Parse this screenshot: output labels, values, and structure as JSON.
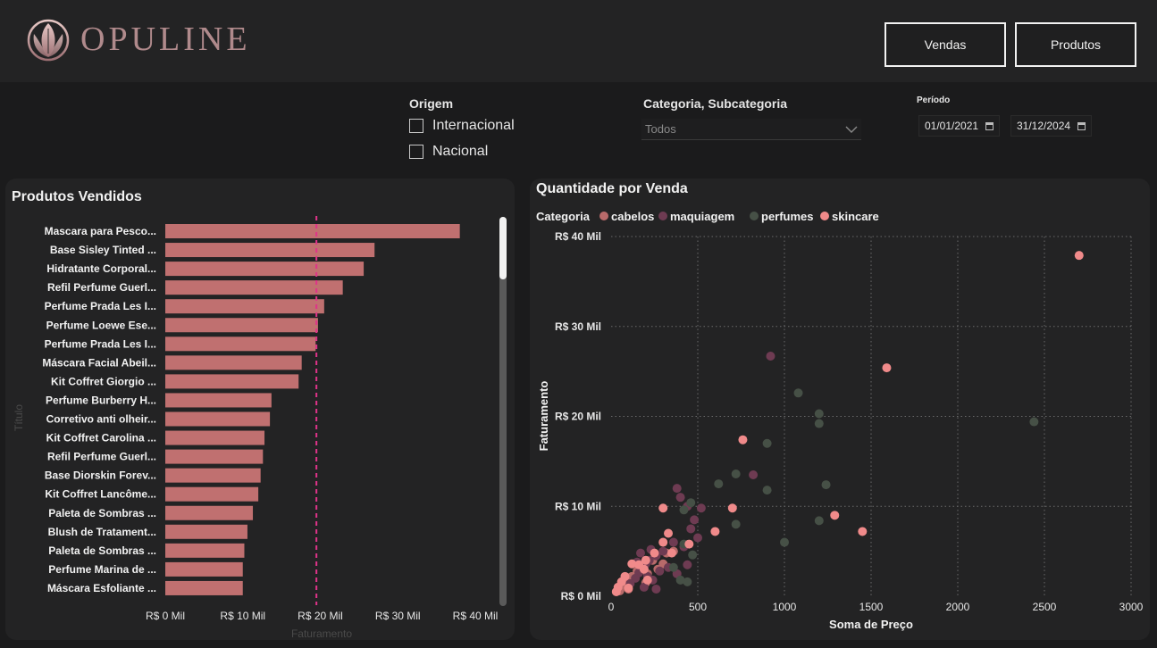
{
  "brand": {
    "name": "OPULINE"
  },
  "nav": {
    "vendas": "Vendas",
    "produtos": "Produtos"
  },
  "filters": {
    "origem": {
      "title": "Origem",
      "options": [
        "Internacional",
        "Nacional"
      ]
    },
    "categoria": {
      "title": "Categoria, Subcategoria",
      "value": "Todos"
    },
    "periodo": {
      "title": "Período",
      "start": "01/01/2021",
      "end": "31/12/2024"
    }
  },
  "left_chart": {
    "title": "Produtos Vendidos",
    "y_axis_title": "Título",
    "x_axis_title": "Faturamento",
    "average_line": 19.5,
    "color": "#c07070",
    "avg_color": "#e0338a"
  },
  "right_chart": {
    "title": "Quantidade por Venda",
    "legend_title": "Categoria",
    "x_axis_title": "Soma de Preço",
    "y_axis_title": "Faturamento"
  },
  "chart_data": [
    {
      "type": "bar",
      "orientation": "horizontal",
      "title": "Produtos Vendidos",
      "xlabel": "Faturamento",
      "ylabel": "Título",
      "xlim": [
        0,
        42
      ],
      "x_ticks": [
        "R$ 0 Mil",
        "R$ 10 Mil",
        "R$ 20 Mil",
        "R$ 30 Mil",
        "R$ 40 Mil"
      ],
      "x_tick_values": [
        0,
        10,
        20,
        30,
        40
      ],
      "categories": [
        "Mascara para Pesco...",
        "Base Sisley Tinted ...",
        "Hidratante Corporal...",
        "Refil Perfume Guerl...",
        "Perfume Prada Les I...",
        "Perfume Loewe Ese...",
        "Perfume Prada Les I...",
        "Máscara Facial Abeil...",
        "Kit Coffret Giorgio ...",
        "Perfume Burberry H...",
        "Corretivo anti olheir...",
        "Kit Coffret Carolina ...",
        "Refil Perfume Guerl...",
        "Base Diorskin Forev...",
        "Kit Coffret Lancôme...",
        "Paleta de Sombras ...",
        "Blush de Tratament...",
        "Paleta de Sombras ...",
        "Perfume Marina de ...",
        "Máscara Esfoliante ..."
      ],
      "values": [
        38.0,
        27.0,
        25.6,
        22.9,
        20.5,
        19.7,
        19.4,
        17.6,
        17.2,
        13.7,
        13.5,
        12.8,
        12.6,
        12.3,
        12.0,
        11.3,
        10.6,
        10.2,
        10.0,
        10.0
      ]
    },
    {
      "type": "scatter",
      "title": "Quantidade por Venda",
      "xlabel": "Soma de Preço",
      "ylabel": "Faturamento",
      "xlim": [
        0,
        3000
      ],
      "ylim": [
        0,
        40
      ],
      "x_ticks": [
        "0",
        "500",
        "1000",
        "1500",
        "2000",
        "2500",
        "3000"
      ],
      "x_tick_values": [
        0,
        500,
        1000,
        1500,
        2000,
        2500,
        3000
      ],
      "y_ticks": [
        "R$ 0 Mil",
        "R$ 10 Mil",
        "R$ 20 Mil",
        "R$ 30 Mil",
        "R$ 40 Mil"
      ],
      "y_tick_values": [
        0,
        10,
        20,
        30,
        40
      ],
      "legend_title": "Categoria",
      "legend_position": "top-left",
      "grid": true,
      "series": [
        {
          "name": "cabelos",
          "color": "#b86a6a",
          "points": [
            [
              60,
              1.2
            ],
            [
              90,
              1.8
            ],
            [
              120,
              2.2
            ],
            [
              150,
              2.8
            ],
            [
              180,
              3.5
            ],
            [
              210,
              2.5
            ],
            [
              240,
              4.0
            ],
            [
              270,
              3.0
            ],
            [
              300,
              3.6
            ],
            [
              320,
              4.8
            ],
            [
              360,
              5.0
            ],
            [
              200,
              1.5
            ],
            [
              100,
              0.8
            ],
            [
              50,
              0.6
            ]
          ]
        },
        {
          "name": "maquiagem",
          "color": "#6e3b52",
          "points": [
            [
              920,
              26.7
            ],
            [
              820,
              13.5
            ],
            [
              380,
              12.0
            ],
            [
              400,
              11.0
            ],
            [
              440,
              10.0
            ],
            [
              480,
              8.5
            ],
            [
              520,
              9.8
            ],
            [
              460,
              7.5
            ],
            [
              500,
              6.5
            ],
            [
              420,
              5.5
            ],
            [
              360,
              6.0
            ],
            [
              300,
              5.0
            ],
            [
              260,
              4.5
            ],
            [
              220,
              4.0
            ],
            [
              200,
              3.6
            ],
            [
              180,
              3.0
            ],
            [
              160,
              2.6
            ],
            [
              140,
              2.0
            ],
            [
              240,
              1.8
            ],
            [
              280,
              2.8
            ],
            [
              330,
              3.2
            ],
            [
              380,
              2.5
            ],
            [
              440,
              3.5
            ],
            [
              170,
              4.8
            ],
            [
              230,
              5.2
            ],
            [
              110,
              1.4
            ],
            [
              190,
              1.0
            ],
            [
              260,
              0.8
            ],
            [
              150,
              3.8
            ],
            [
              210,
              2.2
            ]
          ]
        },
        {
          "name": "perfumes",
          "color": "#465046",
          "points": [
            [
              1080,
              22.6
            ],
            [
              1200,
              20.3
            ],
            [
              1200,
              19.2
            ],
            [
              2440,
              19.4
            ],
            [
              900,
              17.0
            ],
            [
              720,
              13.6
            ],
            [
              620,
              12.5
            ],
            [
              900,
              11.8
            ],
            [
              1240,
              12.4
            ],
            [
              1200,
              8.4
            ],
            [
              720,
              8.0
            ],
            [
              1000,
              6.0
            ],
            [
              420,
              9.6
            ],
            [
              460,
              10.4
            ],
            [
              470,
              4.6
            ],
            [
              420,
              5.8
            ],
            [
              360,
              3.2
            ],
            [
              440,
              1.6
            ],
            [
              400,
              1.8
            ]
          ]
        },
        {
          "name": "skincare",
          "color": "#f08a8a",
          "points": [
            [
              2700,
              37.9
            ],
            [
              1590,
              25.4
            ],
            [
              760,
              17.4
            ],
            [
              700,
              9.8
            ],
            [
              1290,
              9.0
            ],
            [
              1450,
              7.2
            ],
            [
              300,
              9.8
            ],
            [
              600,
              7.2
            ],
            [
              330,
              7.0
            ],
            [
              450,
              5.8
            ],
            [
              300,
              6.0
            ],
            [
              250,
              4.8
            ],
            [
              200,
              4.0
            ],
            [
              160,
              3.5
            ],
            [
              120,
              3.6
            ],
            [
              80,
              2.2
            ],
            [
              60,
              1.6
            ],
            [
              40,
              1.0
            ],
            [
              30,
              0.5
            ],
            [
              210,
              1.8
            ],
            [
              190,
              3.0
            ],
            [
              350,
              4.8
            ],
            [
              100,
              0.9
            ]
          ]
        }
      ]
    }
  ]
}
